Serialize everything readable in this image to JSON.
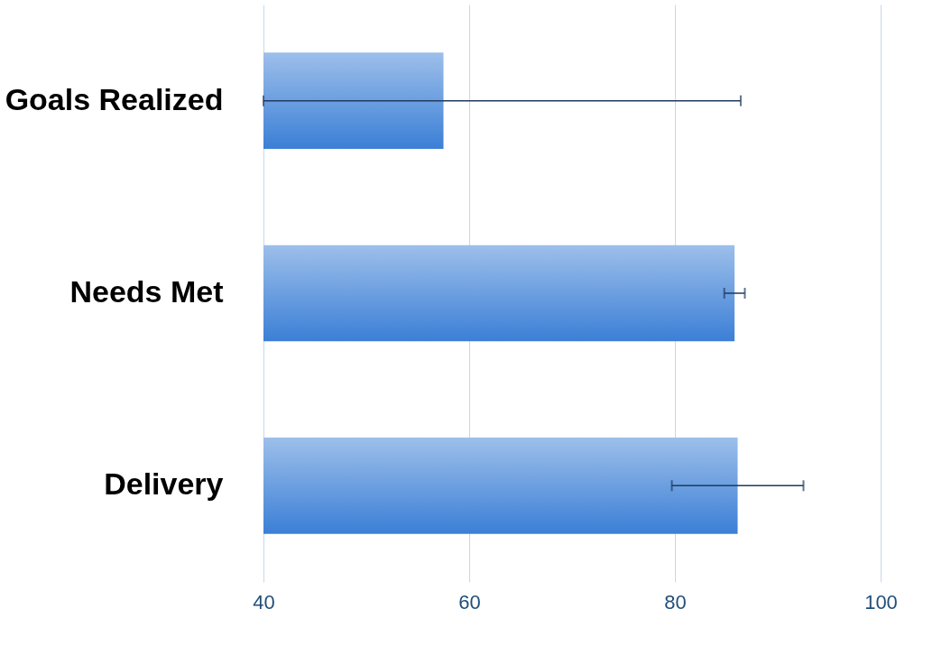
{
  "chart_data": {
    "type": "bar",
    "orientation": "horizontal",
    "categories": [
      "Goals Realized",
      "Needs Met",
      "Delivery"
    ],
    "values": [
      57.5,
      85.8,
      86.1
    ],
    "errors": [
      [
        40,
        86.4
      ],
      1.0,
      6.4
    ],
    "color": "#3b7fd6",
    "xlim": [
      40,
      100
    ],
    "xticks": [
      40,
      60,
      80,
      100
    ],
    "grid": "x"
  }
}
